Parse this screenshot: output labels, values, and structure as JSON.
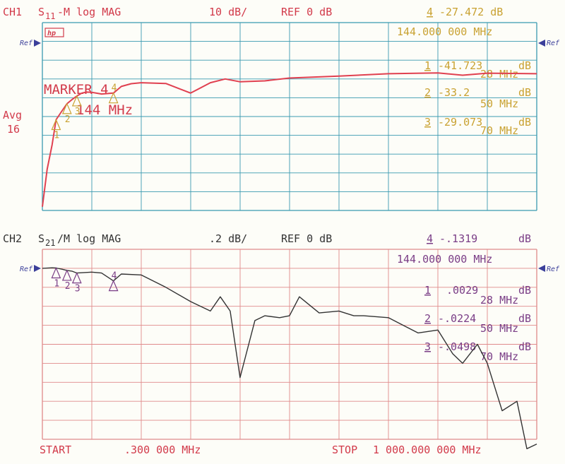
{
  "ch1": {
    "header": {
      "channel": "CH1",
      "param_main": "S",
      "param_sub": "11",
      "param_rest": "-M log MAG",
      "scale": "10 dB/",
      "ref": "REF 0 dB"
    },
    "active_marker": {
      "num": "4",
      "value": "-27.472 dB",
      "freq": "144.000 000 MHz"
    },
    "avg_label": "Avg",
    "avg_value": "16",
    "ref_mark": "Ref",
    "badge": "hp",
    "marker_note_line1": "MARKER 4",
    "marker_note_line2": "144 MHz",
    "markers": [
      {
        "num": "1",
        "value": "-41.723",
        "unit": "dB",
        "freq": "28 MHz"
      },
      {
        "num": "2",
        "value": "-33.2",
        "unit": "dB",
        "freq": "50 MHz"
      },
      {
        "num": "3",
        "value": "-29.073",
        "unit": "dB",
        "freq": "70 MHz"
      }
    ],
    "colors": {
      "trace": "#e04050",
      "grid": "#3a9ab0",
      "markers": "#c9a232",
      "text": "#d23a4a"
    }
  },
  "ch2": {
    "header": {
      "channel": "CH2",
      "param_main": "S",
      "param_sub": "21",
      "param_rest": "/M log MAG",
      "scale": ".2 dB/",
      "ref": "REF 0 dB"
    },
    "active_marker": {
      "num": "4",
      "value": "-.1319",
      "unit": "dB",
      "freq": "144.000 000 MHz"
    },
    "ref_mark": "Ref",
    "markers": [
      {
        "num": "1",
        "value": ".0029",
        "unit": "dB",
        "freq": "28 MHz"
      },
      {
        "num": "2",
        "value": "-.0224",
        "unit": "dB",
        "freq": "50 MHz"
      },
      {
        "num": "3",
        "value": "-.0498",
        "unit": "dB",
        "freq": "70 MHz"
      }
    ],
    "colors": {
      "trace": "#333333",
      "grid": "#e08a8a",
      "markers": "#7a3d86",
      "text": "#333333"
    }
  },
  "footer": {
    "start_label": "START",
    "start_value": ".300 000 MHz",
    "stop_label": "STOP",
    "stop_value": "1 000.000 000 MHz"
  },
  "chart_data": [
    {
      "type": "line",
      "title": "CH1 S11-M log MAG",
      "xlabel": "",
      "ylabel": "",
      "x_range_mhz": [
        0.3,
        1000
      ],
      "ylim": [
        -100,
        0
      ],
      "y_ref_db": 0,
      "y_scale_db_per_div": 10,
      "y_divisions": 10,
      "grid": true,
      "series": [
        {
          "name": "S11",
          "x": [
            0.3,
            10,
            20,
            28,
            40,
            50,
            60,
            70,
            80,
            90,
            100,
            120,
            144,
            160,
            180,
            200,
            250,
            300,
            340,
            370,
            400,
            450,
            500,
            600,
            700,
            800,
            850,
            900,
            1000
          ],
          "y": [
            -88,
            -68,
            -55,
            -41.7,
            -37,
            -33.2,
            -31,
            -29.1,
            -27.5,
            -27,
            -27.1,
            -28,
            -27.5,
            -24,
            -22.5,
            -22,
            -22.4,
            -27.5,
            -22,
            -20,
            -21.5,
            -21,
            -19.5,
            -18.5,
            -17.2,
            -16.8,
            -18,
            -16.9,
            -17.2
          ]
        }
      ],
      "markers": [
        {
          "x": 28,
          "y": -41.723
        },
        {
          "x": 50,
          "y": -33.2
        },
        {
          "x": 70,
          "y": -29.073
        },
        {
          "x": 144,
          "y": -27.472
        }
      ]
    },
    {
      "type": "line",
      "title": "CH2 S21/M log MAG",
      "xlabel": "",
      "ylabel": "",
      "x_range_mhz": [
        0.3,
        1000
      ],
      "ylim": [
        -2,
        0
      ],
      "y_ref_db": 0,
      "y_scale_db_per_div": 0.2,
      "y_divisions": 10,
      "grid": true,
      "series": [
        {
          "name": "S21",
          "x": [
            0.3,
            20,
            28,
            40,
            50,
            60,
            70,
            100,
            120,
            144,
            160,
            200,
            250,
            300,
            340,
            360,
            380,
            400,
            430,
            450,
            480,
            500,
            520,
            560,
            600,
            630,
            650,
            700,
            730,
            760,
            800,
            830,
            850,
            880,
            900,
            930,
            960,
            980,
            1000
          ],
          "y": [
            0,
            0.005,
            0.003,
            -0.01,
            -0.022,
            -0.03,
            -0.05,
            -0.04,
            -0.05,
            -0.132,
            -0.06,
            -0.07,
            -0.2,
            -0.35,
            -0.45,
            -0.3,
            -0.45,
            -1.15,
            -0.55,
            -0.5,
            -0.52,
            -0.5,
            -0.3,
            -0.47,
            -0.45,
            -0.5,
            -0.5,
            -0.52,
            -0.6,
            -0.68,
            -0.65,
            -0.9,
            -1.0,
            -0.8,
            -1.0,
            -1.5,
            -1.4,
            -1.9,
            -1.85
          ]
        }
      ],
      "markers": [
        {
          "x": 28,
          "y": 0.0029
        },
        {
          "x": 50,
          "y": -0.0224
        },
        {
          "x": 70,
          "y": -0.0498
        },
        {
          "x": 144,
          "y": -0.1319
        }
      ]
    }
  ]
}
